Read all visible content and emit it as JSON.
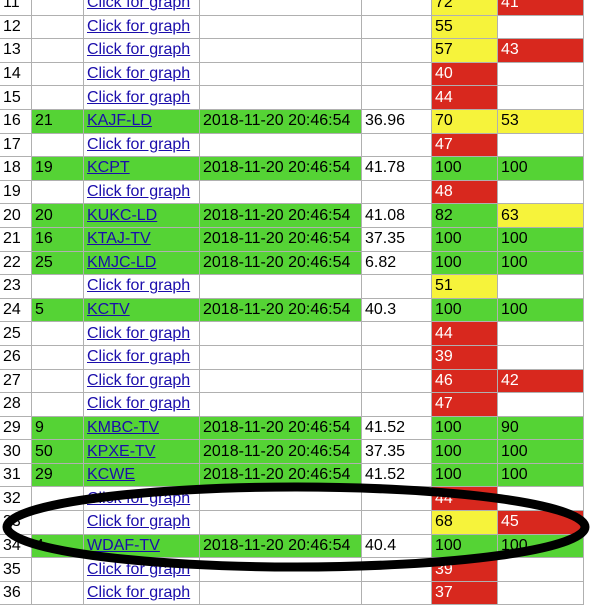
{
  "link_label": "Click for graph",
  "colors": {
    "green": "#55d335",
    "yellow": "#f6f33b",
    "red": "#d8281e",
    "link": "#1a0dab"
  },
  "rows": [
    {
      "n": "11",
      "ch": "",
      "call": "",
      "time": "",
      "snr": "",
      "ss": "72",
      "ssc": "y",
      "sq": "41",
      "sqc": "r"
    },
    {
      "n": "12",
      "ch": "",
      "call": "",
      "time": "",
      "snr": "",
      "ss": "55",
      "ssc": "y",
      "sq": "",
      "sqc": ""
    },
    {
      "n": "13",
      "ch": "",
      "call": "",
      "time": "",
      "snr": "",
      "ss": "57",
      "ssc": "y",
      "sq": "43",
      "sqc": "r"
    },
    {
      "n": "14",
      "ch": "",
      "call": "",
      "time": "",
      "snr": "",
      "ss": "40",
      "ssc": "r",
      "sq": "",
      "sqc": ""
    },
    {
      "n": "15",
      "ch": "",
      "call": "",
      "time": "",
      "snr": "",
      "ss": "44",
      "ssc": "r",
      "sq": "",
      "sqc": ""
    },
    {
      "n": "16",
      "ch": "21",
      "call": "KAJF-LD",
      "time": "2018-11-20 20:46:54",
      "snr": "36.96",
      "ss": "70",
      "ssc": "y",
      "sq": "53",
      "sqc": "y"
    },
    {
      "n": "17",
      "ch": "",
      "call": "",
      "time": "",
      "snr": "",
      "ss": "47",
      "ssc": "r",
      "sq": "",
      "sqc": ""
    },
    {
      "n": "18",
      "ch": "19",
      "call": "KCPT",
      "time": "2018-11-20 20:46:54",
      "snr": "41.78",
      "ss": "100",
      "ssc": "g",
      "sq": "100",
      "sqc": "g"
    },
    {
      "n": "19",
      "ch": "",
      "call": "",
      "time": "",
      "snr": "",
      "ss": "48",
      "ssc": "r",
      "sq": "",
      "sqc": ""
    },
    {
      "n": "20",
      "ch": "20",
      "call": "KUKC-LD",
      "time": "2018-11-20 20:46:54",
      "snr": "41.08",
      "ss": "82",
      "ssc": "g",
      "sq": "63",
      "sqc": "y"
    },
    {
      "n": "21",
      "ch": "16",
      "call": "KTAJ-TV",
      "time": "2018-11-20 20:46:54",
      "snr": "37.35",
      "ss": "100",
      "ssc": "g",
      "sq": "100",
      "sqc": "g"
    },
    {
      "n": "22",
      "ch": "25",
      "call": "KMJC-LD",
      "time": "2018-11-20 20:46:54",
      "snr": "6.82",
      "ss": "100",
      "ssc": "g",
      "sq": "100",
      "sqc": "g"
    },
    {
      "n": "23",
      "ch": "",
      "call": "",
      "time": "",
      "snr": "",
      "ss": "51",
      "ssc": "y",
      "sq": "",
      "sqc": ""
    },
    {
      "n": "24",
      "ch": "5",
      "call": "KCTV",
      "time": "2018-11-20 20:46:54",
      "snr": "40.3",
      "ss": "100",
      "ssc": "g",
      "sq": "100",
      "sqc": "g"
    },
    {
      "n": "25",
      "ch": "",
      "call": "",
      "time": "",
      "snr": "",
      "ss": "44",
      "ssc": "r",
      "sq": "",
      "sqc": ""
    },
    {
      "n": "26",
      "ch": "",
      "call": "",
      "time": "",
      "snr": "",
      "ss": "39",
      "ssc": "r",
      "sq": "",
      "sqc": ""
    },
    {
      "n": "27",
      "ch": "",
      "call": "",
      "time": "",
      "snr": "",
      "ss": "46",
      "ssc": "r",
      "sq": "42",
      "sqc": "r"
    },
    {
      "n": "28",
      "ch": "",
      "call": "",
      "time": "",
      "snr": "",
      "ss": "47",
      "ssc": "r",
      "sq": "",
      "sqc": ""
    },
    {
      "n": "29",
      "ch": "9",
      "call": "KMBC-TV",
      "time": "2018-11-20 20:46:54",
      "snr": "41.52",
      "ss": "100",
      "ssc": "g",
      "sq": "90",
      "sqc": "g"
    },
    {
      "n": "30",
      "ch": "50",
      "call": "KPXE-TV",
      "time": "2018-11-20 20:46:54",
      "snr": "37.35",
      "ss": "100",
      "ssc": "g",
      "sq": "100",
      "sqc": "g"
    },
    {
      "n": "31",
      "ch": "29",
      "call": "KCWE",
      "time": "2018-11-20 20:46:54",
      "snr": "41.52",
      "ss": "100",
      "ssc": "g",
      "sq": "100",
      "sqc": "g"
    },
    {
      "n": "32",
      "ch": "",
      "call": "",
      "time": "",
      "snr": "",
      "ss": "44",
      "ssc": "r",
      "sq": "",
      "sqc": ""
    },
    {
      "n": "33",
      "ch": "",
      "call": "",
      "time": "",
      "snr": "",
      "ss": "68",
      "ssc": "y",
      "sq": "45",
      "sqc": "r"
    },
    {
      "n": "34",
      "ch": "4",
      "call": "WDAF-TV",
      "time": "2018-11-20 20:46:54",
      "snr": "40.4",
      "ss": "100",
      "ssc": "g",
      "sq": "100",
      "sqc": "g"
    },
    {
      "n": "35",
      "ch": "",
      "call": "",
      "time": "",
      "snr": "",
      "ss": "39",
      "ssc": "r",
      "sq": "",
      "sqc": ""
    },
    {
      "n": "36",
      "ch": "",
      "call": "",
      "time": "",
      "snr": "",
      "ss": "37",
      "ssc": "r",
      "sq": "",
      "sqc": ""
    }
  ]
}
